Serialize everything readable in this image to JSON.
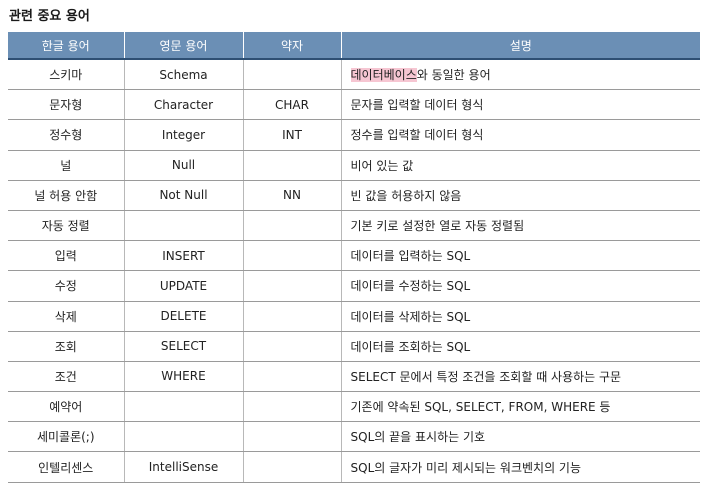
{
  "title": "관련 중요 용어",
  "table": {
    "headers": [
      "한글 용어",
      "영문 용어",
      "약자",
      "설명"
    ],
    "rows": [
      {
        "ko": "스키마",
        "en": "Schema",
        "abbr": "",
        "desc_highlight": "데이터베이스",
        "desc": "와 동일한 용어"
      },
      {
        "ko": "문자형",
        "en": "Character",
        "abbr": "CHAR",
        "desc_highlight": "",
        "desc": "문자를 입력할 데이터 형식"
      },
      {
        "ko": "정수형",
        "en": "Integer",
        "abbr": "INT",
        "desc_highlight": "",
        "desc": "정수를 입력할 데이터 형식"
      },
      {
        "ko": "널",
        "en": "Null",
        "abbr": "",
        "desc_highlight": "",
        "desc": "비어 있는 값"
      },
      {
        "ko": "널 허용 안함",
        "en": "Not Null",
        "abbr": "NN",
        "desc_highlight": "",
        "desc": "빈 값을 허용하지 않음"
      },
      {
        "ko": "자동 정렬",
        "en": "",
        "abbr": "",
        "desc_highlight": "",
        "desc": "기본 키로 설정한 열로 자동 정렬됨"
      },
      {
        "ko": "입력",
        "en": "INSERT",
        "abbr": "",
        "desc_highlight": "",
        "desc": "데이터를 입력하는 SQL"
      },
      {
        "ko": "수정",
        "en": "UPDATE",
        "abbr": "",
        "desc_highlight": "",
        "desc": "데이터를 수정하는 SQL"
      },
      {
        "ko": "삭제",
        "en": "DELETE",
        "abbr": "",
        "desc_highlight": "",
        "desc": "데이터를 삭제하는 SQL"
      },
      {
        "ko": "조회",
        "en": "SELECT",
        "abbr": "",
        "desc_highlight": "",
        "desc": "데이터를 조회하는 SQL"
      },
      {
        "ko": "조건",
        "en": "WHERE",
        "abbr": "",
        "desc_highlight": "",
        "desc": "SELECT 문에서 특정 조건을 조회할 때 사용하는 구문"
      },
      {
        "ko": "예약어",
        "en": "",
        "abbr": "",
        "desc_highlight": "",
        "desc": "기존에 약속된 SQL, SELECT, FROM, WHERE 등"
      },
      {
        "ko": "세미콜론(;)",
        "en": "",
        "abbr": "",
        "desc_highlight": "",
        "desc": "SQL의 끝을 표시하는 기호"
      },
      {
        "ko": "인텔리센스",
        "en": "IntelliSense",
        "abbr": "",
        "desc_highlight": "",
        "desc": "SQL의 글자가 미리 제시되는 워크벤치의 기능"
      }
    ]
  },
  "colors": {
    "header_bg": "#6b8fb5",
    "header_rule": "#2e4f73",
    "highlight": "#f6c6d2"
  }
}
